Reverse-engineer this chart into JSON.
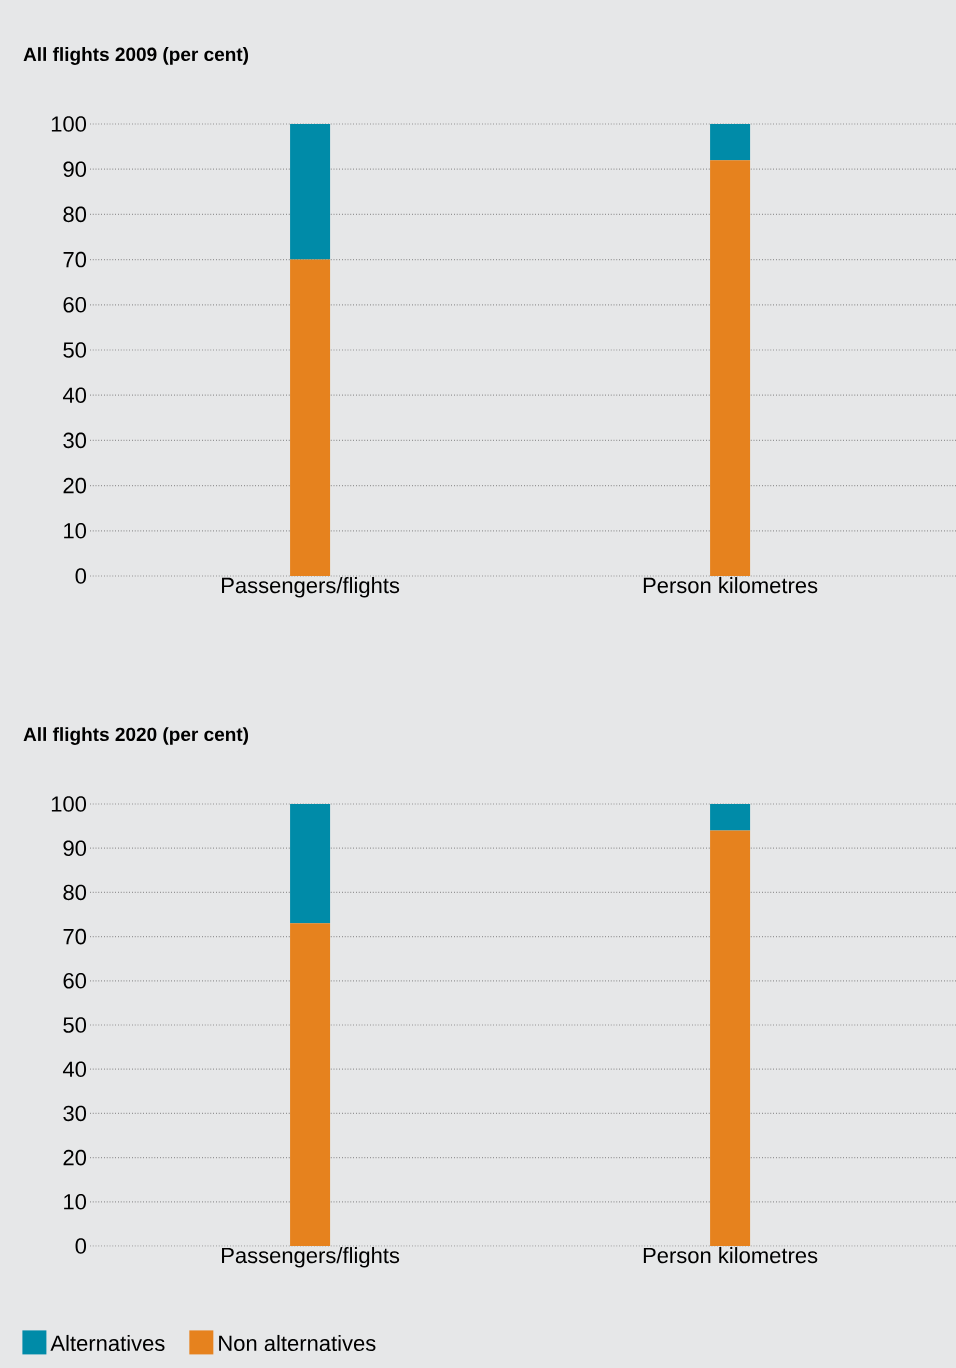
{
  "chart_data": [
    {
      "type": "bar",
      "title": "All flights 2009 (per cent)",
      "categories": [
        "Passengers/flights",
        "Person kilometres"
      ],
      "stacked": true,
      "series": [
        {
          "color": "#e6821e",
          "values": [
            70,
            92
          ]
        },
        {
          "color": "#008ba8",
          "values": [
            30,
            8
          ]
        }
      ],
      "ylim": [
        0,
        100
      ],
      "yticks": [
        0,
        10,
        20,
        30,
        40,
        50,
        60,
        70,
        80,
        90,
        100
      ],
      "grid": "y"
    },
    {
      "type": "bar",
      "title": "All flights 2020 (per cent)",
      "categories": [
        "Passengers/flights",
        "Person kilometres"
      ],
      "stacked": true,
      "series": [
        {
          "name": "Non alternatives",
          "color": "#e6821e",
          "values": [
            73,
            94
          ]
        },
        {
          "name": "Alternatives",
          "color": "#008ba8",
          "values": [
            27,
            6
          ]
        }
      ],
      "ylim": [
        0,
        100
      ],
      "yticks": [
        0,
        10,
        20,
        30,
        40,
        50,
        60,
        70,
        80,
        90,
        100
      ],
      "grid": "y",
      "legend": "bottom"
    }
  ]
}
